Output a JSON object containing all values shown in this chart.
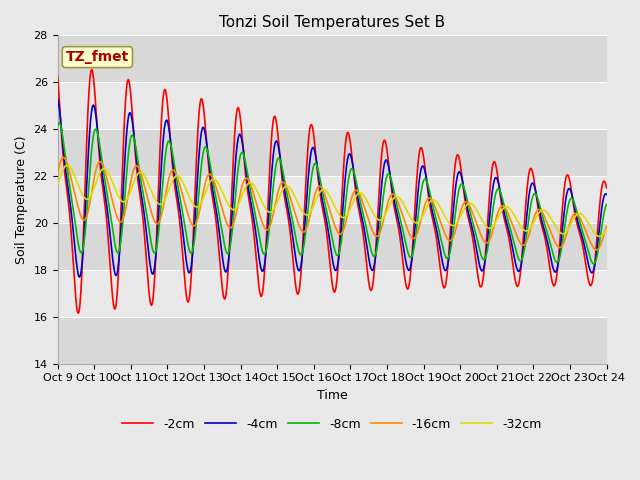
{
  "title": "Tonzi Soil Temperatures Set B",
  "xlabel": "Time",
  "ylabel": "Soil Temperature (C)",
  "xlim": [
    0,
    15
  ],
  "ylim": [
    14,
    28
  ],
  "yticks": [
    14,
    16,
    18,
    20,
    22,
    24,
    26,
    28
  ],
  "xtick_labels": [
    "Oct 9",
    "Oct 10",
    "Oct 11",
    "Oct 12",
    "Oct 13",
    "Oct 14",
    "Oct 15",
    "Oct 16",
    "Oct 17",
    "Oct 18",
    "Oct 19",
    "Oct 20",
    "Oct 21",
    "Oct 22",
    "Oct 23",
    "Oct 24"
  ],
  "legend_labels": [
    "-2cm",
    "-4cm",
    "-8cm",
    "-16cm",
    "-32cm"
  ],
  "legend_colors": [
    "#ff0000",
    "#0000cc",
    "#00bb00",
    "#ff8800",
    "#dddd00"
  ],
  "annotation_text": "TZ_fmet",
  "annotation_color": "#aa0000",
  "annotation_bg": "#ffffcc",
  "annotation_border": "#999944",
  "title_fontsize": 11,
  "tick_fontsize": 8,
  "label_fontsize": 9,
  "band_colors": [
    "#d8d8d8",
    "#e8e8e8"
  ],
  "fig_bg": "#e8e8e8"
}
